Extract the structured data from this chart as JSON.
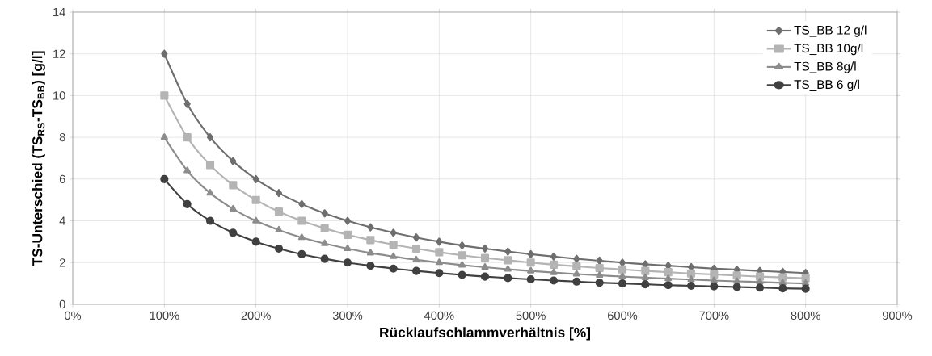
{
  "chart_data": {
    "type": "line",
    "xlabel": "Rücklaufschlammverhältnis [%]",
    "ylabel": "TS-Unterschied (TS$_{RS}$-TS$_{BB}$) [g/l]",
    "x": [
      100,
      125,
      150,
      175,
      200,
      225,
      250,
      275,
      300,
      325,
      350,
      375,
      400,
      425,
      450,
      475,
      500,
      525,
      550,
      575,
      600,
      625,
      650,
      675,
      700,
      725,
      750,
      775,
      800
    ],
    "series": [
      {
        "name": "TS_BB 12 g/l",
        "color": "#6e6e6e",
        "marker": "diamond",
        "values": [
          12,
          9.6,
          8,
          6.86,
          6,
          5.33,
          4.8,
          4.36,
          4,
          3.69,
          3.43,
          3.2,
          3,
          2.82,
          2.67,
          2.53,
          2.4,
          2.29,
          2.18,
          2.09,
          2,
          1.92,
          1.85,
          1.78,
          1.71,
          1.66,
          1.6,
          1.55,
          1.5
        ]
      },
      {
        "name": "TS_BB 10g/l",
        "color": "#b4b4b4",
        "marker": "square",
        "values": [
          10,
          8,
          6.67,
          5.71,
          5,
          4.44,
          4,
          3.64,
          3.33,
          3.08,
          2.86,
          2.67,
          2.5,
          2.35,
          2.22,
          2.11,
          2,
          1.9,
          1.82,
          1.74,
          1.67,
          1.6,
          1.54,
          1.48,
          1.43,
          1.38,
          1.33,
          1.29,
          1.25
        ]
      },
      {
        "name": "TS_BB 8g/l",
        "color": "#8c8c8c",
        "marker": "triangle",
        "values": [
          8,
          6.4,
          5.33,
          4.57,
          4,
          3.56,
          3.2,
          2.91,
          2.67,
          2.46,
          2.29,
          2.13,
          2,
          1.88,
          1.78,
          1.68,
          1.6,
          1.52,
          1.45,
          1.39,
          1.33,
          1.28,
          1.23,
          1.19,
          1.14,
          1.1,
          1.07,
          1.03,
          1
        ]
      },
      {
        "name": "TS_BB 6 g/l",
        "color": "#404040",
        "marker": "circle",
        "values": [
          6,
          4.8,
          4,
          3.43,
          3,
          2.67,
          2.4,
          2.18,
          2,
          1.85,
          1.71,
          1.6,
          1.5,
          1.41,
          1.33,
          1.26,
          1.2,
          1.14,
          1.09,
          1.04,
          1,
          0.96,
          0.92,
          0.89,
          0.86,
          0.83,
          0.8,
          0.77,
          0.75
        ]
      }
    ],
    "xlim": [
      0,
      900
    ],
    "xticks": [
      {
        "value": 0,
        "label": "0%"
      },
      {
        "value": 100,
        "label": "100%"
      },
      {
        "value": 200,
        "label": "200%"
      },
      {
        "value": 300,
        "label": "300%"
      },
      {
        "value": 400,
        "label": "400%"
      },
      {
        "value": 500,
        "label": "500%"
      },
      {
        "value": 600,
        "label": "600%"
      },
      {
        "value": 700,
        "label": "700%"
      },
      {
        "value": 800,
        "label": "800%"
      },
      {
        "value": 900,
        "label": "900%"
      }
    ],
    "ylim": [
      0,
      14
    ],
    "yticks": [
      0,
      2,
      4,
      6,
      8,
      10,
      12,
      14
    ],
    "grid": true,
    "legend": "top right",
    "line_style": "solid"
  }
}
